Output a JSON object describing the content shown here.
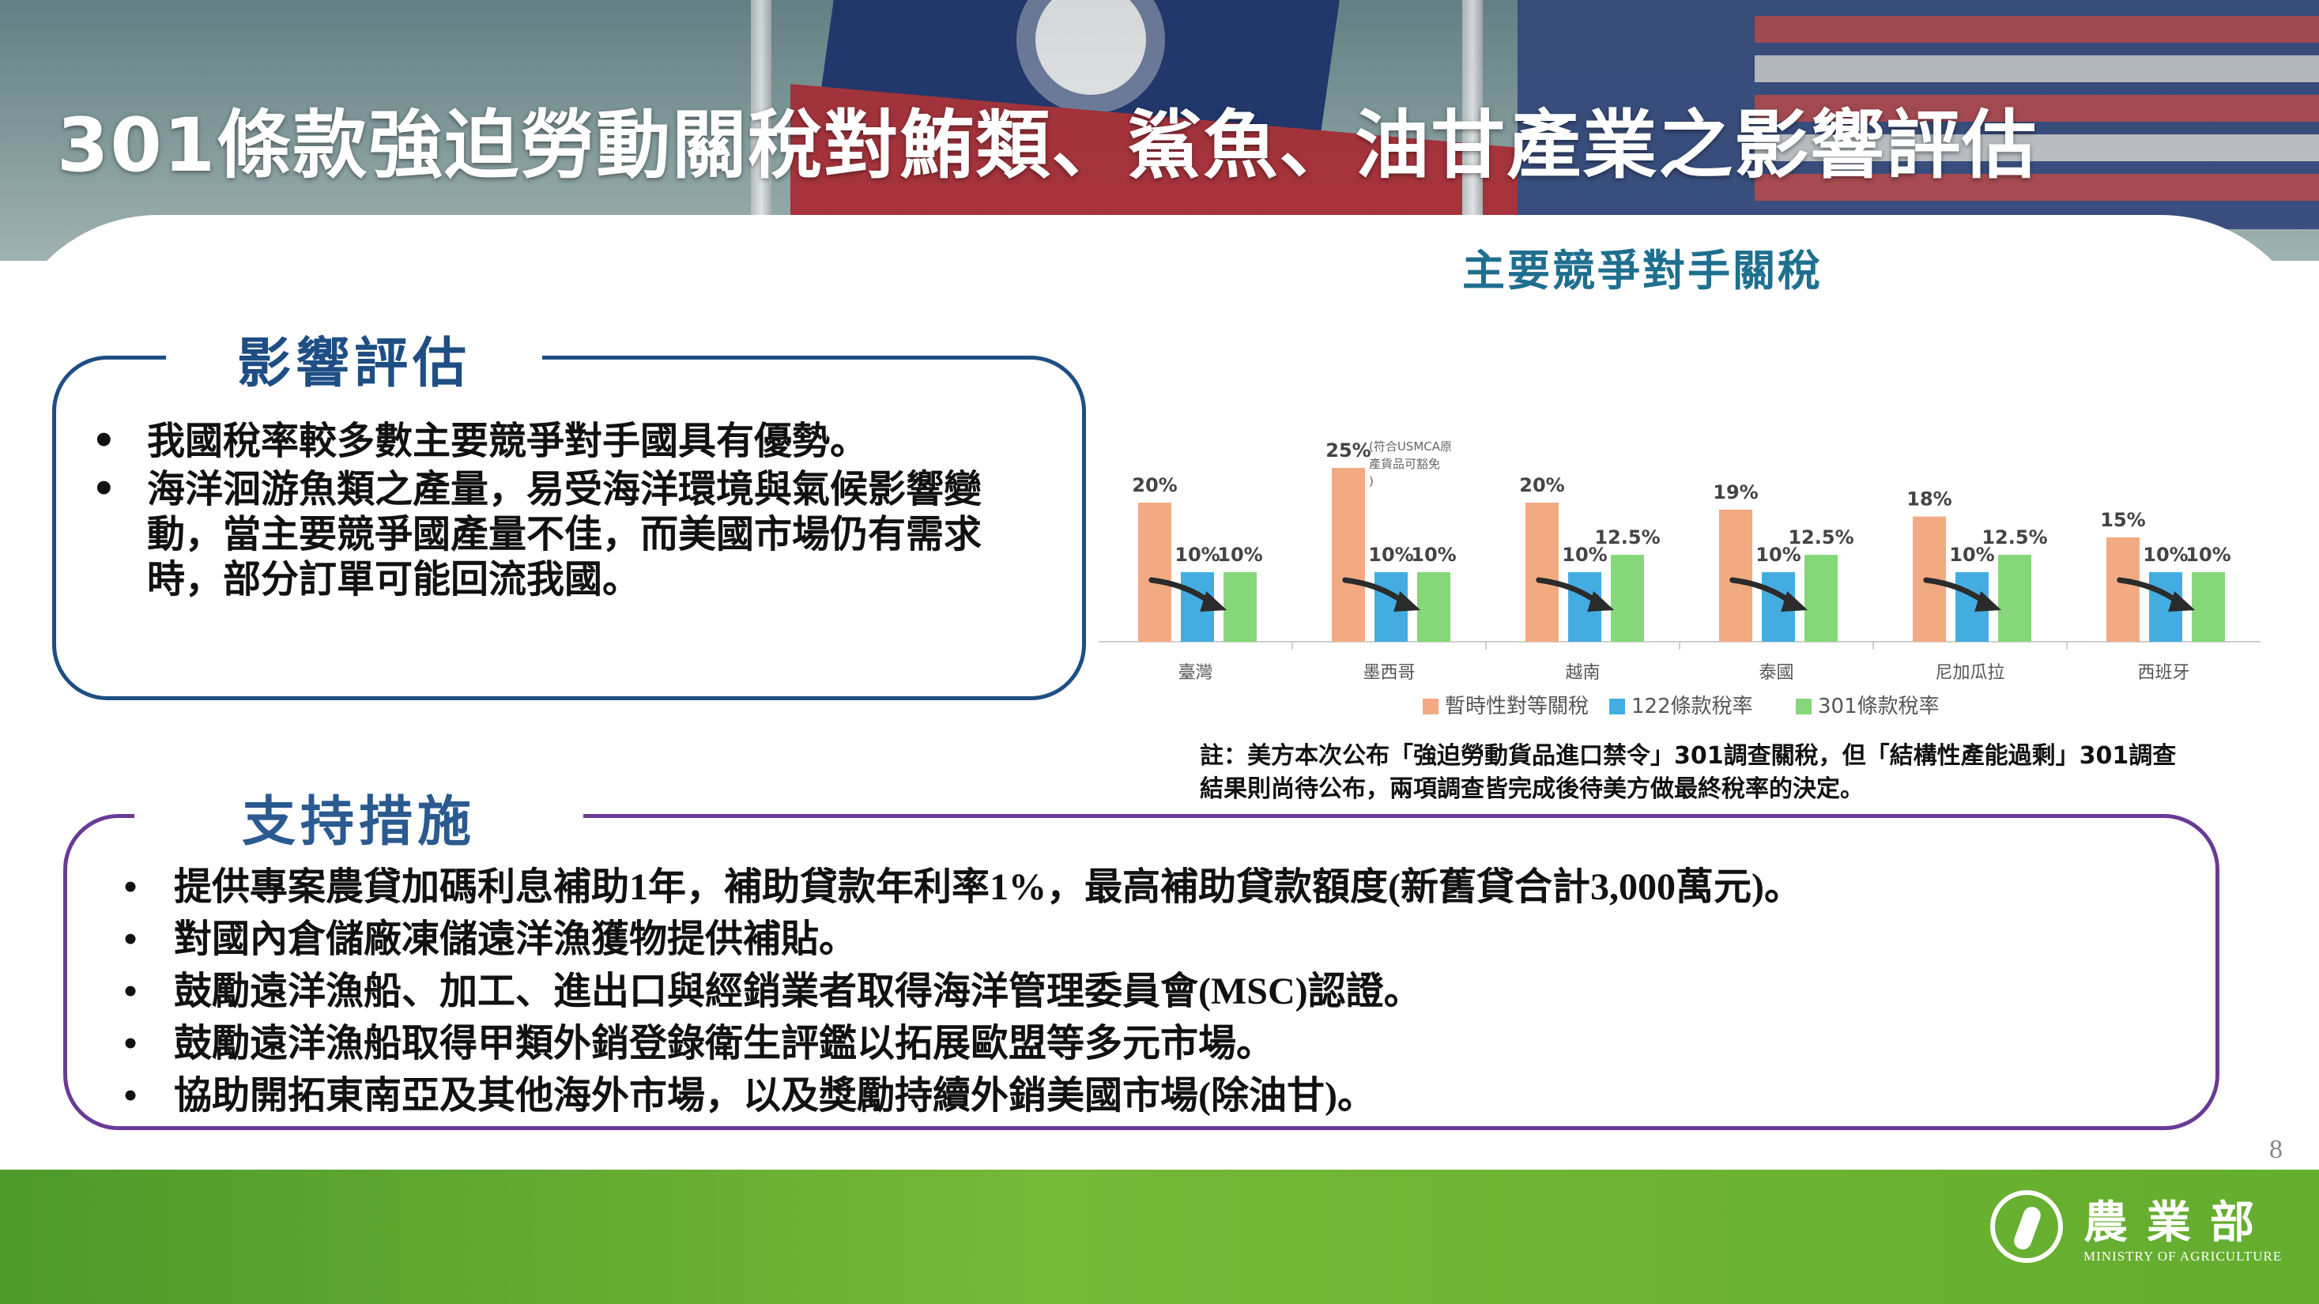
{
  "slide": {
    "title": "301條款強迫勞動關稅對鮪類、鯊魚、油甘產業之影響評估",
    "page_number": "8"
  },
  "impact": {
    "heading": "影響評估",
    "bullets": [
      "我國稅率較多數主要競爭對手國具有優勢。",
      "海洋洄游魚類之產量，易受海洋環境與氣候影響變動，當主要競爭國產量不佳，而美國市場仍有需求時，部分訂單可能回流我國。"
    ]
  },
  "support": {
    "heading": "支持措施",
    "bullets": [
      "提供專案農貸加碼利息補助1年，補助貸款年利率1%，最高補助貸款額度(新舊貸合計3,000萬元)。",
      "對國內倉儲廠凍儲遠洋漁獲物提供補貼。",
      "鼓勵遠洋漁船、加工、進出口與經銷業者取得海洋管理委員會(MSC)認證。",
      "鼓勵遠洋漁船取得甲類外銷登錄衛生評鑑以拓展歐盟等多元市場。",
      "協助開拓東南亞及其他海外市場，以及獎勵持續外銷美國市場(除油甘)。"
    ]
  },
  "chart_data": {
    "type": "bar",
    "title": "主要競爭對手關稅",
    "categories": [
      "臺灣",
      "墨西哥",
      "越南",
      "泰國",
      "尼加瓜拉",
      "西班牙"
    ],
    "series": [
      {
        "name": "暫時性對等關稅",
        "color": "#f2aa82",
        "values": [
          20,
          25,
          20,
          19,
          18,
          15
        ],
        "labels": [
          "20%",
          "25%",
          "20%",
          "19%",
          "18%",
          "15%"
        ]
      },
      {
        "name": "122條款稅率",
        "color": "#43ade2",
        "values": [
          10,
          10,
          10,
          10,
          10,
          10
        ],
        "labels": [
          "10%",
          "10%",
          "10%",
          "10%",
          "10%",
          "10%"
        ]
      },
      {
        "name": "301條款稅率",
        "color": "#86d77a",
        "values": [
          10,
          10,
          12.5,
          12.5,
          12.5,
          10
        ],
        "labels": [
          "10%",
          "10%",
          "12.5%",
          "12.5%",
          "12.5%",
          "10%"
        ]
      }
    ],
    "annotation": "(符合USMCA原產貨品可豁免)",
    "legend_position": "bottom",
    "grid": false
  },
  "chart_note": "註：美方本次公布「強迫勞動貨品進口禁令」301調查關稅，但「結構性產能過剩」301調查結果則尚待公布，兩項調查皆完成後待美方做最終稅率的決定。",
  "logo": {
    "name": "農業部",
    "english": "MINISTRY OF AGRICULTURE"
  }
}
